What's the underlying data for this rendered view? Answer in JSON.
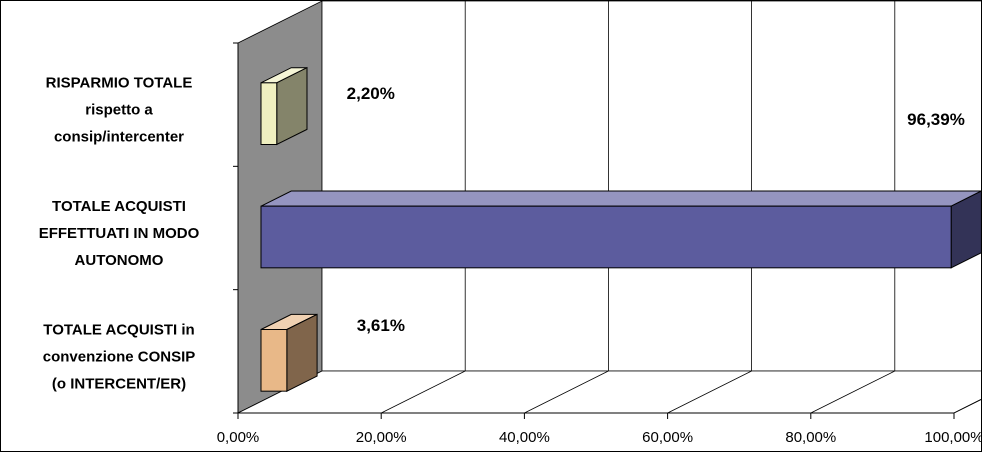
{
  "chart_data": {
    "type": "bar",
    "orientation": "horizontal",
    "three_d": true,
    "categories": [
      [
        "RISPARMIO TOTALE",
        "rispetto a",
        "consip/intercenter"
      ],
      [
        "TOTALE ACQUISTI",
        "EFFETTUATI IN MODO",
        "AUTONOMO"
      ],
      [
        "TOTALE ACQUISTI in",
        "convenzione CONSIP",
        "(o INTERCENT/ER)"
      ]
    ],
    "values": [
      2.2,
      96.39,
      3.61
    ],
    "data_labels": [
      "2,20%",
      "96,39%",
      "3,61%"
    ],
    "bar_colors": [
      "#f0f0c0",
      "#5c5c9e",
      "#e8b888"
    ],
    "xlim": [
      0,
      100
    ],
    "x_ticks": [
      0,
      20,
      40,
      60,
      80,
      100
    ],
    "x_tick_labels": [
      "0,00%",
      "20,00%",
      "40,00%",
      "60,00%",
      "80,00%",
      "100,00%"
    ],
    "grid": true,
    "legend": "none"
  }
}
